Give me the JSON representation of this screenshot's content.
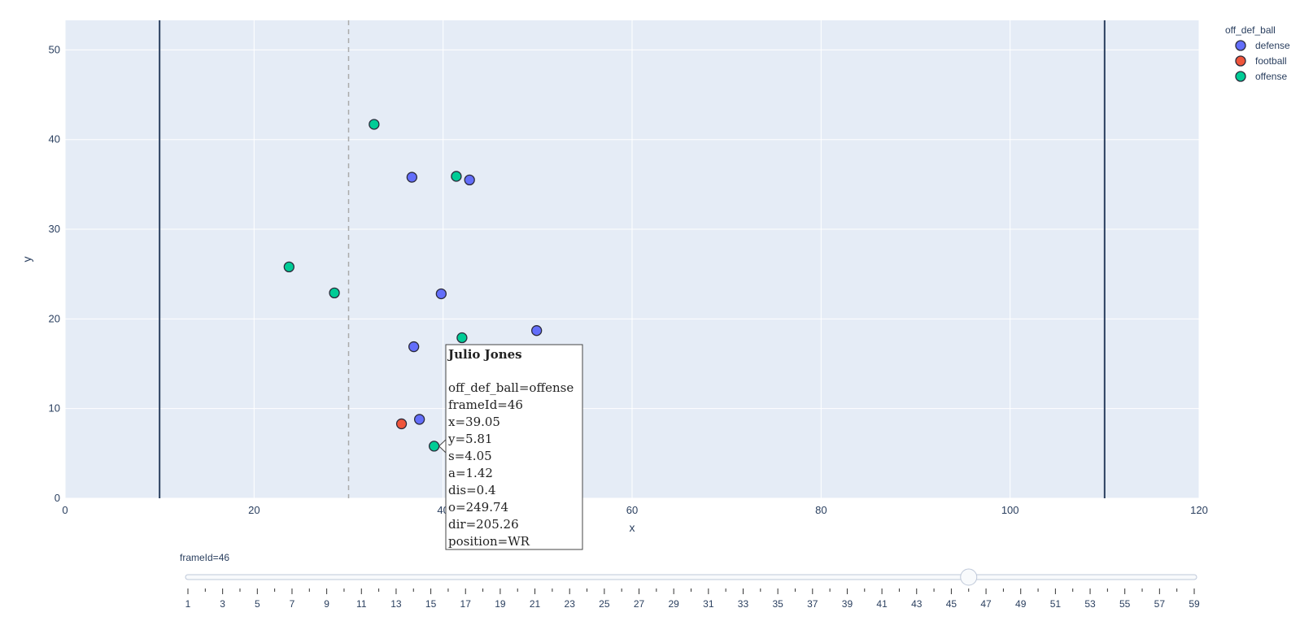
{
  "chart_data": {
    "type": "scatter",
    "xlabel": "x",
    "ylabel": "y",
    "xlim": [
      0,
      120
    ],
    "ylim": [
      0,
      53.3
    ],
    "xticks": [
      0,
      20,
      40,
      60,
      80,
      100,
      120
    ],
    "yticks": [
      0,
      10,
      20,
      30,
      40,
      50
    ],
    "grid": true,
    "legend": {
      "title": "off_def_ball",
      "placement": "top-right",
      "entries": [
        {
          "name": "defense",
          "color": "#636efa"
        },
        {
          "name": "football",
          "color": "#ef553b"
        },
        {
          "name": "offense",
          "color": "#00cc96"
        }
      ]
    },
    "vertical_lines": [
      {
        "x": 10,
        "style": "solid",
        "color": "#2a3f5f"
      },
      {
        "x": 110,
        "style": "solid",
        "color": "#2a3f5f"
      },
      {
        "x": 30,
        "style": "dashed",
        "color": "#aaaaaa"
      }
    ],
    "series": [
      {
        "name": "defense",
        "color": "#636efa",
        "points": [
          {
            "x": 36.7,
            "y": 35.8
          },
          {
            "x": 42.8,
            "y": 35.5
          },
          {
            "x": 39.8,
            "y": 22.8
          },
          {
            "x": 49.9,
            "y": 18.7
          },
          {
            "x": 36.9,
            "y": 16.9
          },
          {
            "x": 37.5,
            "y": 8.8
          }
        ]
      },
      {
        "name": "football",
        "color": "#ef553b",
        "points": [
          {
            "x": 35.6,
            "y": 8.3
          }
        ]
      },
      {
        "name": "offense",
        "color": "#00cc96",
        "points": [
          {
            "x": 32.7,
            "y": 41.7
          },
          {
            "x": 41.4,
            "y": 35.9
          },
          {
            "x": 23.7,
            "y": 25.8
          },
          {
            "x": 28.5,
            "y": 22.9
          },
          {
            "x": 42.0,
            "y": 17.9
          },
          {
            "x": 39.05,
            "y": 5.81
          }
        ]
      }
    ],
    "hover": {
      "title": "Julio Jones",
      "lines": [
        "off_def_ball=offense",
        "frameId=46",
        "x=39.05",
        "y=5.81",
        "s=4.05",
        "a=1.42",
        "dis=0.4",
        "o=249.74",
        "dir=205.26",
        "position=WR"
      ]
    },
    "slider": {
      "label": "frameId=46",
      "min": 1,
      "max": 59,
      "value": 46,
      "tick_labels": [
        "1",
        "3",
        "5",
        "7",
        "9",
        "11",
        "13",
        "15",
        "17",
        "19",
        "21",
        "23",
        "25",
        "27",
        "29",
        "31",
        "33",
        "35",
        "37",
        "39",
        "41",
        "43",
        "45",
        "47",
        "49",
        "51",
        "53",
        "55",
        "57",
        "59"
      ]
    }
  }
}
